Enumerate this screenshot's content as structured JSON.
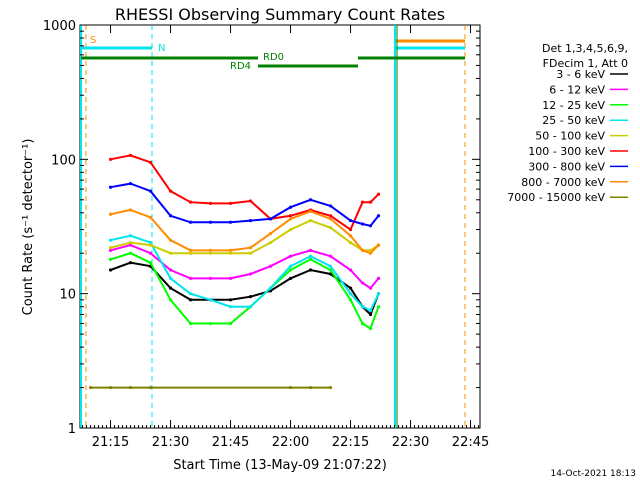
{
  "chart_data": {
    "type": "line",
    "title": "RHESSI Observing Summary Count Rates",
    "xlabel": "Start Time (13-May-09 21:07:22)",
    "ylabel": "Count Rate (s⁻¹ detector⁻¹)",
    "y_scale": "log",
    "ylim": [
      1,
      1000
    ],
    "xlim": [
      "21:07:22",
      "22:47:22"
    ],
    "x_ticks": [
      "21:15",
      "21:30",
      "21:45",
      "22:00",
      "22:15",
      "22:30",
      "22:45"
    ],
    "y_ticks": [
      "1",
      "10",
      "100",
      "1000"
    ],
    "grid": false,
    "legend_position": "top-right",
    "legend_header": [
      "Det 1,3,4,5,6,9,",
      "FDecim 1, Att 0"
    ],
    "timestamp": "14-Oct-2021 18:13",
    "flags": [
      {
        "label": "S",
        "color": "#ff8c00"
      },
      {
        "label": "N",
        "color": "#00e5ee"
      },
      {
        "label": "RD0",
        "color": "#008000"
      },
      {
        "label": "RD4",
        "color": "#008000"
      }
    ],
    "series": [
      {
        "name": "3 - 6 keV",
        "color": "#000000",
        "points": [
          [
            "21:15",
            15
          ],
          [
            "21:20",
            17
          ],
          [
            "21:25",
            16
          ],
          [
            "21:30",
            11
          ],
          [
            "21:35",
            9
          ],
          [
            "21:40",
            9
          ],
          [
            "21:45",
            9
          ],
          [
            "21:50",
            9.5
          ],
          [
            "21:55",
            10.5
          ],
          [
            "22:00",
            13
          ],
          [
            "22:05",
            15
          ],
          [
            "22:10",
            14
          ],
          [
            "22:15",
            11
          ],
          [
            "22:18",
            8
          ],
          [
            "22:20",
            7
          ],
          [
            "22:22",
            10
          ]
        ]
      },
      {
        "name": "6 - 12 keV",
        "color": "#ff00ff",
        "points": [
          [
            "21:15",
            21
          ],
          [
            "21:20",
            23
          ],
          [
            "21:25",
            20
          ],
          [
            "21:30",
            15
          ],
          [
            "21:35",
            13
          ],
          [
            "21:40",
            13
          ],
          [
            "21:45",
            13
          ],
          [
            "21:50",
            14
          ],
          [
            "21:55",
            16
          ],
          [
            "22:00",
            19
          ],
          [
            "22:05",
            21
          ],
          [
            "22:10",
            19
          ],
          [
            "22:15",
            15
          ],
          [
            "22:18",
            12
          ],
          [
            "22:20",
            11
          ],
          [
            "22:22",
            13
          ]
        ]
      },
      {
        "name": "12 - 25 keV",
        "color": "#00ff00",
        "points": [
          [
            "21:15",
            18
          ],
          [
            "21:20",
            20
          ],
          [
            "21:25",
            17
          ],
          [
            "21:30",
            9
          ],
          [
            "21:35",
            6
          ],
          [
            "21:40",
            6
          ],
          [
            "21:45",
            6
          ],
          [
            "21:50",
            8
          ],
          [
            "21:55",
            11
          ],
          [
            "22:00",
            15
          ],
          [
            "22:05",
            18
          ],
          [
            "22:10",
            15
          ],
          [
            "22:15",
            9
          ],
          [
            "22:18",
            6
          ],
          [
            "22:20",
            5.5
          ],
          [
            "22:22",
            8
          ]
        ]
      },
      {
        "name": "25 - 50 keV",
        "color": "#00e5ee",
        "points": [
          [
            "21:15",
            25
          ],
          [
            "21:20",
            27
          ],
          [
            "21:25",
            24
          ],
          [
            "21:30",
            13
          ],
          [
            "21:35",
            10
          ],
          [
            "21:40",
            9
          ],
          [
            "21:45",
            8
          ],
          [
            "21:50",
            8
          ],
          [
            "21:55",
            11
          ],
          [
            "22:00",
            16
          ],
          [
            "22:05",
            19
          ],
          [
            "22:10",
            16
          ],
          [
            "22:15",
            10
          ],
          [
            "22:18",
            8
          ],
          [
            "22:20",
            7.5
          ],
          [
            "22:22",
            10
          ]
        ]
      },
      {
        "name": "50 - 100 keV",
        "color": "#cccc00",
        "points": [
          [
            "21:15",
            22
          ],
          [
            "21:20",
            24
          ],
          [
            "21:25",
            23
          ],
          [
            "21:30",
            20
          ],
          [
            "21:35",
            20
          ],
          [
            "21:40",
            20
          ],
          [
            "21:45",
            20
          ],
          [
            "21:50",
            20
          ],
          [
            "21:55",
            24
          ],
          [
            "22:00",
            30
          ],
          [
            "22:05",
            35
          ],
          [
            "22:10",
            31
          ],
          [
            "22:15",
            24
          ],
          [
            "22:18",
            21
          ],
          [
            "22:20",
            21
          ],
          [
            "22:22",
            23
          ]
        ]
      },
      {
        "name": "100 - 300 keV",
        "color": "#ff0000",
        "points": [
          [
            "21:15",
            100
          ],
          [
            "21:20",
            107
          ],
          [
            "21:25",
            95
          ],
          [
            "21:30",
            58
          ],
          [
            "21:35",
            48
          ],
          [
            "21:40",
            47
          ],
          [
            "21:45",
            47
          ],
          [
            "21:50",
            49
          ],
          [
            "21:55",
            36
          ],
          [
            "22:00",
            38
          ],
          [
            "22:05",
            42
          ],
          [
            "22:10",
            38
          ],
          [
            "22:15",
            30
          ],
          [
            "22:18",
            48
          ],
          [
            "22:20",
            48
          ],
          [
            "22:22",
            55
          ]
        ]
      },
      {
        "name": "300 - 800 keV",
        "color": "#0000ff",
        "points": [
          [
            "21:15",
            62
          ],
          [
            "21:20",
            66
          ],
          [
            "21:25",
            58
          ],
          [
            "21:30",
            38
          ],
          [
            "21:35",
            34
          ],
          [
            "21:40",
            34
          ],
          [
            "21:45",
            34
          ],
          [
            "21:50",
            35
          ],
          [
            "21:55",
            36
          ],
          [
            "22:00",
            44
          ],
          [
            "22:05",
            50
          ],
          [
            "22:10",
            45
          ],
          [
            "22:15",
            35
          ],
          [
            "22:18",
            33
          ],
          [
            "22:20",
            32
          ],
          [
            "22:22",
            38
          ]
        ]
      },
      {
        "name": "800 - 7000 keV",
        "color": "#ff8c00",
        "points": [
          [
            "21:15",
            39
          ],
          [
            "21:20",
            42
          ],
          [
            "21:25",
            37
          ],
          [
            "21:30",
            25
          ],
          [
            "21:35",
            21
          ],
          [
            "21:40",
            21
          ],
          [
            "21:45",
            21
          ],
          [
            "21:50",
            22
          ],
          [
            "21:55",
            28
          ],
          [
            "22:00",
            36
          ],
          [
            "22:05",
            41
          ],
          [
            "22:10",
            36
          ],
          [
            "22:15",
            27
          ],
          [
            "22:18",
            21
          ],
          [
            "22:20",
            20
          ],
          [
            "22:22",
            23
          ]
        ]
      },
      {
        "name": "7000 - 15000 keV",
        "color": "#808000",
        "points": [
          [
            "21:10",
            2
          ],
          [
            "21:15",
            2
          ],
          [
            "21:20",
            2
          ],
          [
            "21:25",
            2
          ],
          [
            "22:00",
            2
          ],
          [
            "22:05",
            2
          ],
          [
            "22:10",
            2
          ]
        ]
      }
    ]
  }
}
